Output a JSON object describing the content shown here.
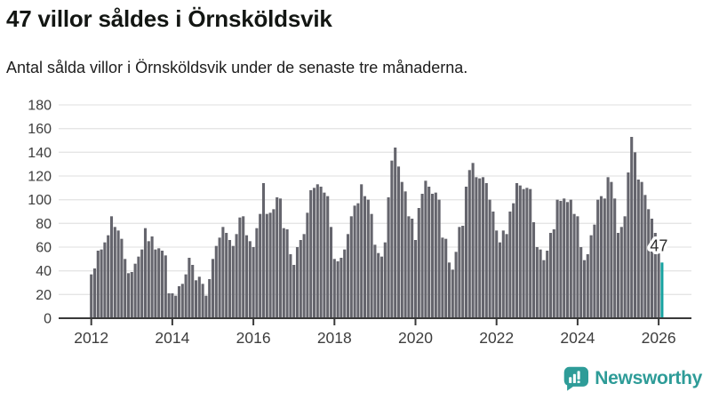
{
  "header": {
    "title": "47 villor såldes i Örnsköldsvik",
    "subtitle": "Antal sålda villor i Örnsköldsvik under de senaste tre månaderna."
  },
  "logo": {
    "text": "Newsworthy",
    "color": "#2E9C98"
  },
  "chart_data": {
    "type": "bar",
    "title": "47 villor såldes i Örnsköldsvik",
    "subtitle": "Antal sålda villor i Örnsköldsvik under de senaste tre månaderna.",
    "start_year": 2012,
    "start_month": 1,
    "end_year": 2026,
    "end_month": 2,
    "x_tick_labels": [
      "2012",
      "2014",
      "2016",
      "2018",
      "2020",
      "2022",
      "2024",
      "2026"
    ],
    "y_tick_labels": [
      "0",
      "20",
      "40",
      "60",
      "80",
      "100",
      "120",
      "140",
      "160",
      "180"
    ],
    "ylim": [
      0,
      180
    ],
    "ytick_step": 20,
    "grid": true,
    "legend": "none",
    "bar_color": "#65656D",
    "highlight_color": "#17A2A0",
    "axis_color": "#3A3A3A",
    "grid_color": "#E5E5E5",
    "tick_label_color": "#3D3D3D",
    "highlight_last": true,
    "last_value_label": "47",
    "values": [
      37,
      42,
      57,
      58,
      64,
      70,
      86,
      77,
      74,
      67,
      50,
      38,
      39,
      46,
      52,
      58,
      76,
      65,
      69,
      58,
      59,
      57,
      53,
      21,
      21,
      19,
      27,
      29,
      37,
      51,
      45,
      32,
      35,
      29,
      19,
      33,
      50,
      61,
      68,
      77,
      72,
      66,
      61,
      71,
      85,
      86,
      70,
      65,
      60,
      76,
      88,
      114,
      88,
      89,
      92,
      102,
      101,
      76,
      75,
      54,
      45,
      60,
      66,
      71,
      89,
      108,
      110,
      113,
      111,
      106,
      103,
      77,
      50,
      48,
      51,
      58,
      71,
      86,
      95,
      97,
      113,
      103,
      100,
      88,
      62,
      55,
      52,
      64,
      102,
      133,
      144,
      128,
      115,
      107,
      86,
      84,
      66,
      93,
      105,
      116,
      111,
      105,
      106,
      100,
      68,
      67,
      47,
      41,
      56,
      77,
      78,
      111,
      125,
      131,
      119,
      118,
      119,
      114,
      100,
      90,
      74,
      64,
      74,
      71,
      90,
      97,
      114,
      112,
      109,
      110,
      109,
      81,
      60,
      58,
      49,
      57,
      72,
      75,
      100,
      99,
      101,
      98,
      100,
      88,
      86,
      60,
      49,
      54,
      70,
      79,
      100,
      103,
      101,
      119,
      115,
      101,
      72,
      77,
      86,
      123,
      153,
      140,
      117,
      115,
      104,
      92,
      84,
      72,
      56,
      47
    ]
  }
}
